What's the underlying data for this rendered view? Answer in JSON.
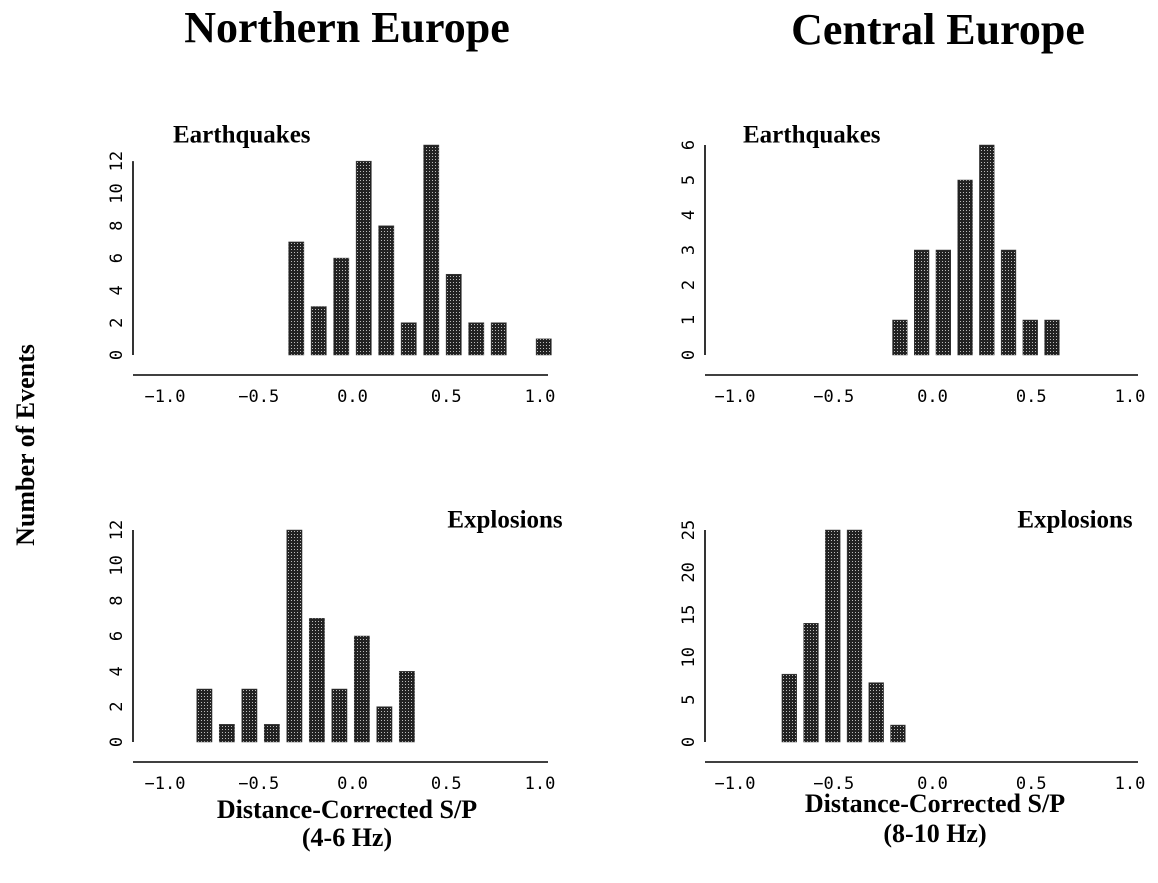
{
  "columns": [
    {
      "title": "Northern Europe",
      "xlabel": [
        "Distance-Corrected S/P",
        "(4-6 Hz)"
      ]
    },
    {
      "title": "Central Europe",
      "xlabel": [
        "Distance-Corrected S/P",
        "(8-10 Hz)"
      ]
    }
  ],
  "ylabel": "Number of Events",
  "chart_data": [
    {
      "type": "histogram",
      "title": "Earthquakes",
      "title_corner": "upper left",
      "color": "#3c3c3c",
      "bins": [
        -0.36,
        -0.24,
        -0.12,
        0,
        0.12,
        0.24,
        0.36,
        0.48,
        0.6,
        0.72,
        0.84,
        0.96,
        1.08
      ],
      "counts": [
        7,
        3,
        6,
        12,
        8,
        2,
        13,
        5,
        2,
        2,
        0,
        1
      ],
      "xlim": [
        -1,
        1
      ],
      "xticks": [
        {
          "value": -1,
          "label": "−1.0"
        },
        {
          "value": -0.5,
          "label": "−0.5"
        },
        {
          "value": 0,
          "label": "0.0"
        },
        0.5,
        {
          "value": 1,
          "label": "1.0"
        }
      ],
      "ylim": [
        0,
        13
      ],
      "yticks": [
        0,
        2,
        4,
        6,
        8,
        10,
        12
      ]
    },
    {
      "type": "histogram",
      "title": "Earthquakes",
      "title_corner": "upper left",
      "color": "#3c3c3c",
      "bins": [
        -0.22,
        -0.11,
        0,
        0.11,
        0.22,
        0.33,
        0.44,
        0.55,
        0.66
      ],
      "counts": [
        1,
        3,
        3,
        5,
        6,
        3,
        1,
        1
      ],
      "xlim": [
        -1,
        1
      ],
      "xticks": [
        {
          "value": -1,
          "label": "−1.0"
        },
        {
          "value": -0.5,
          "label": "−0.5"
        },
        {
          "value": 0,
          "label": "0.0"
        },
        0.5,
        {
          "value": 1,
          "label": "1.0"
        }
      ],
      "ylim": [
        0,
        6
      ],
      "yticks": [
        0,
        1,
        2,
        3,
        4,
        5,
        6
      ]
    },
    {
      "type": "histogram",
      "title": "Explosions",
      "title_corner": "upper right",
      "color": "#3c3c3c",
      "bins": [
        -0.85,
        -0.73,
        -0.61,
        -0.49,
        -0.37,
        -0.25,
        -0.13,
        -0.01,
        0.11,
        0.23,
        0.35
      ],
      "counts": [
        3,
        1,
        3,
        1,
        12,
        7,
        3,
        6,
        2,
        4
      ],
      "xlim": [
        -1,
        1
      ],
      "xticks": [
        {
          "value": -1,
          "label": "−1.0"
        },
        {
          "value": -0.5,
          "label": "−0.5"
        },
        {
          "value": 0,
          "label": "0.0"
        },
        0.5,
        {
          "value": 1,
          "label": "1.0"
        }
      ],
      "ylim": [
        0,
        12
      ],
      "yticks": [
        0,
        2,
        4,
        6,
        8,
        10,
        12
      ]
    },
    {
      "type": "histogram",
      "title": "Explosions",
      "title_corner": "upper right",
      "color": "#3c3c3c",
      "bins": [
        -0.78,
        -0.67,
        -0.56,
        -0.45,
        -0.34,
        -0.23,
        -0.12
      ],
      "counts": [
        8,
        14,
        25,
        25,
        7,
        2
      ],
      "xlim": [
        -1,
        1
      ],
      "xticks": [
        {
          "value": -1,
          "label": "−1.0"
        },
        {
          "value": -0.5,
          "label": "−0.5"
        },
        {
          "value": 0,
          "label": "0.0"
        },
        0.5,
        {
          "value": 1,
          "label": "1.0"
        }
      ],
      "ylim": [
        0,
        25
      ],
      "yticks": [
        0,
        5,
        10,
        15,
        20,
        25
      ]
    }
  ]
}
